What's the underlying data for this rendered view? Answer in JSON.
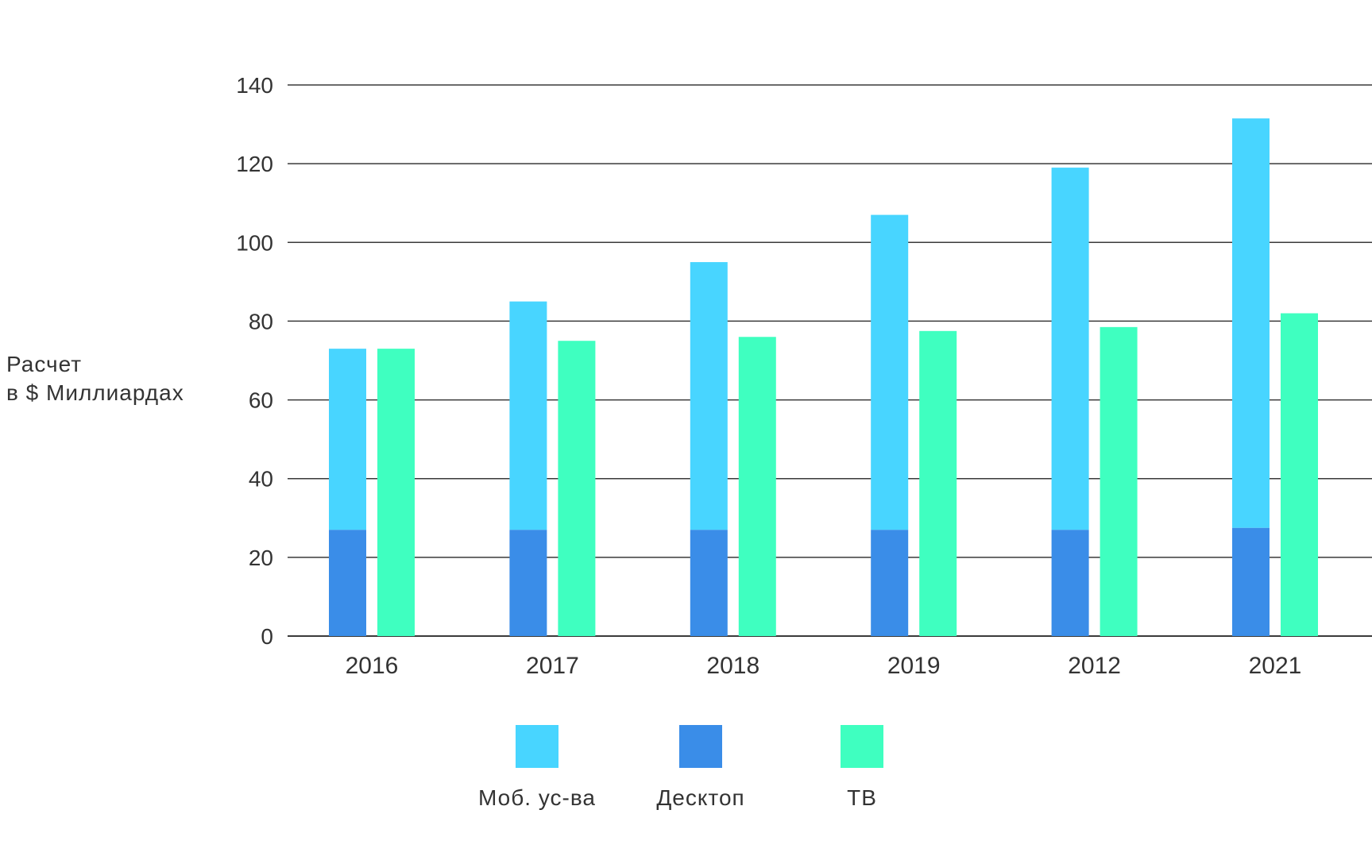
{
  "chart_data": {
    "type": "bar",
    "categories": [
      "2016",
      "2017",
      "2018",
      "2019",
      "2012",
      "2021"
    ],
    "series": [
      {
        "name": "Моб. ус-ва",
        "values": [
          46,
          58,
          68,
          80,
          92,
          104
        ],
        "color": "#48D5FF",
        "stack": "a"
      },
      {
        "name": "Десктоп",
        "values": [
          27,
          27,
          27,
          27,
          27,
          27.5
        ],
        "color": "#3A8DE8",
        "stack": "a"
      },
      {
        "name": "ТВ",
        "values": [
          73,
          75,
          76,
          77.5,
          78.5,
          82
        ],
        "color": "#3FFFC0",
        "stack": "b"
      }
    ],
    "stacked": true,
    "ylabel_lines": [
      "Расчет",
      "в $ Миллиардах"
    ],
    "xlabel": "",
    "ylim": [
      0,
      140
    ],
    "yticks": [
      0,
      20,
      40,
      60,
      80,
      100,
      120,
      140
    ],
    "grid": true,
    "legend_position": "bottom"
  }
}
